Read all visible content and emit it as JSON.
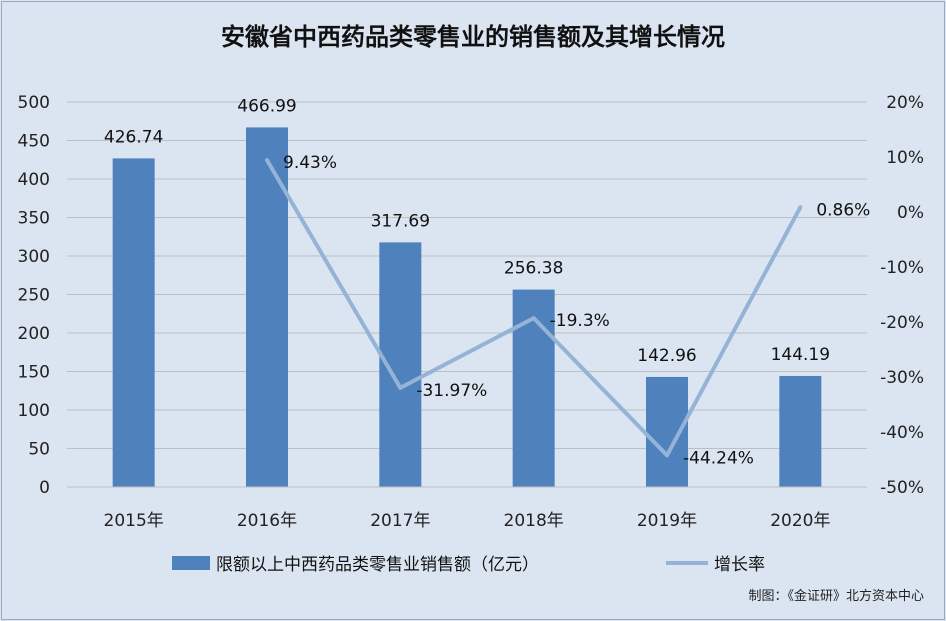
{
  "chart_data": {
    "type": "bar",
    "title": "安徽省中西药品类零售业的销售额及其增长情况",
    "categories": [
      "2015年",
      "2016年",
      "2017年",
      "2018年",
      "2019年",
      "2020年"
    ],
    "series": [
      {
        "name": "限额以上中西药品类零售业销售额（亿元）",
        "type": "bar",
        "axis": "left",
        "values": [
          426.74,
          466.99,
          317.69,
          256.38,
          142.96,
          144.19
        ],
        "labels": [
          "426.74",
          "466.99",
          "317.69",
          "256.38",
          "142.96",
          "144.19"
        ],
        "color": "#4f81bd"
      },
      {
        "name": "增长率",
        "type": "line",
        "axis": "right",
        "values": [
          null,
          9.43,
          -31.97,
          -19.3,
          -44.24,
          0.86
        ],
        "labels": [
          "",
          "9.43%",
          "-31.97%",
          "-19.3%",
          "-44.24%",
          "0.86%"
        ],
        "color": "#95b3d7"
      }
    ],
    "y_left": {
      "min": 0,
      "max": 500,
      "step": 50,
      "ticks": [
        "0",
        "50",
        "100",
        "150",
        "200",
        "250",
        "300",
        "350",
        "400",
        "450",
        "500"
      ]
    },
    "y_right": {
      "min": -50,
      "max": 20,
      "step": 10,
      "ticks": [
        "-50%",
        "-40%",
        "-30%",
        "-20%",
        "-10%",
        "0%",
        "10%",
        "20%"
      ]
    },
    "grid": true,
    "legend_position": "bottom"
  },
  "source_note": "制图：《金证研》北方资本中心"
}
